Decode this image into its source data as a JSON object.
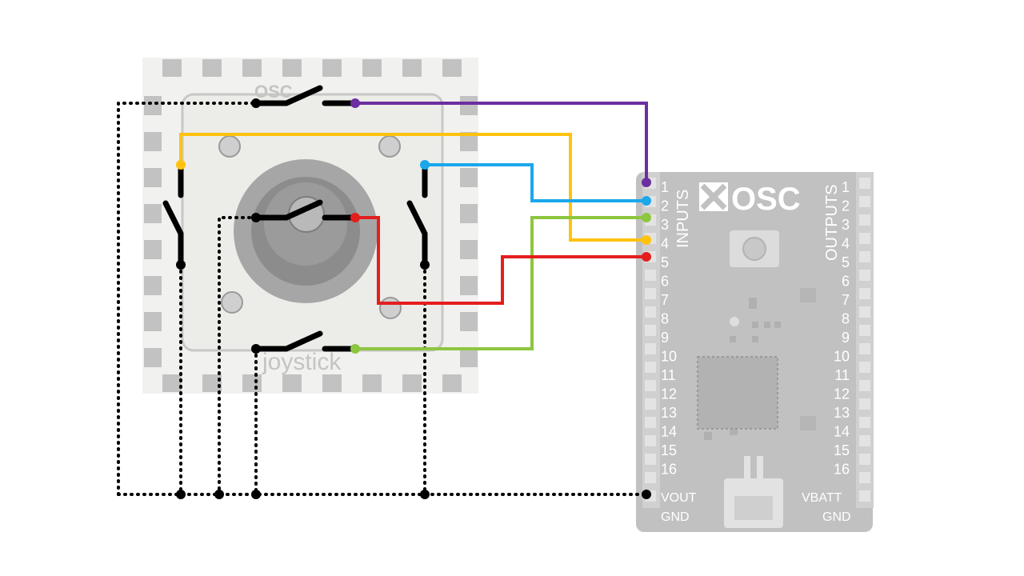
{
  "joystick_board": {
    "logo_text": "OSC",
    "engraving": "joystick"
  },
  "controller_board": {
    "logo_text": "OSC",
    "inputs_label": "INPUTS",
    "outputs_label": "OUTPUTS",
    "input_pins": [
      "1",
      "2",
      "3",
      "4",
      "5",
      "6",
      "7",
      "8",
      "9",
      "10",
      "11",
      "12",
      "13",
      "14",
      "15",
      "16"
    ],
    "output_pins": [
      "1",
      "2",
      "3",
      "4",
      "5",
      "6",
      "7",
      "8",
      "9",
      "10",
      "11",
      "12",
      "13",
      "14",
      "15",
      "16"
    ],
    "vout_label": "VOUT",
    "vbatt_label": "VBATT",
    "gnd_left_label": "GND",
    "gnd_right_label": "GND"
  },
  "wire_colors": {
    "up_purple": "#6b2fa0",
    "left_yellow": "#ffc20e",
    "right_blue": "#1aa7ec",
    "down_green": "#8dc63f",
    "center_red": "#e41e1e",
    "ground_black": "#000000"
  }
}
